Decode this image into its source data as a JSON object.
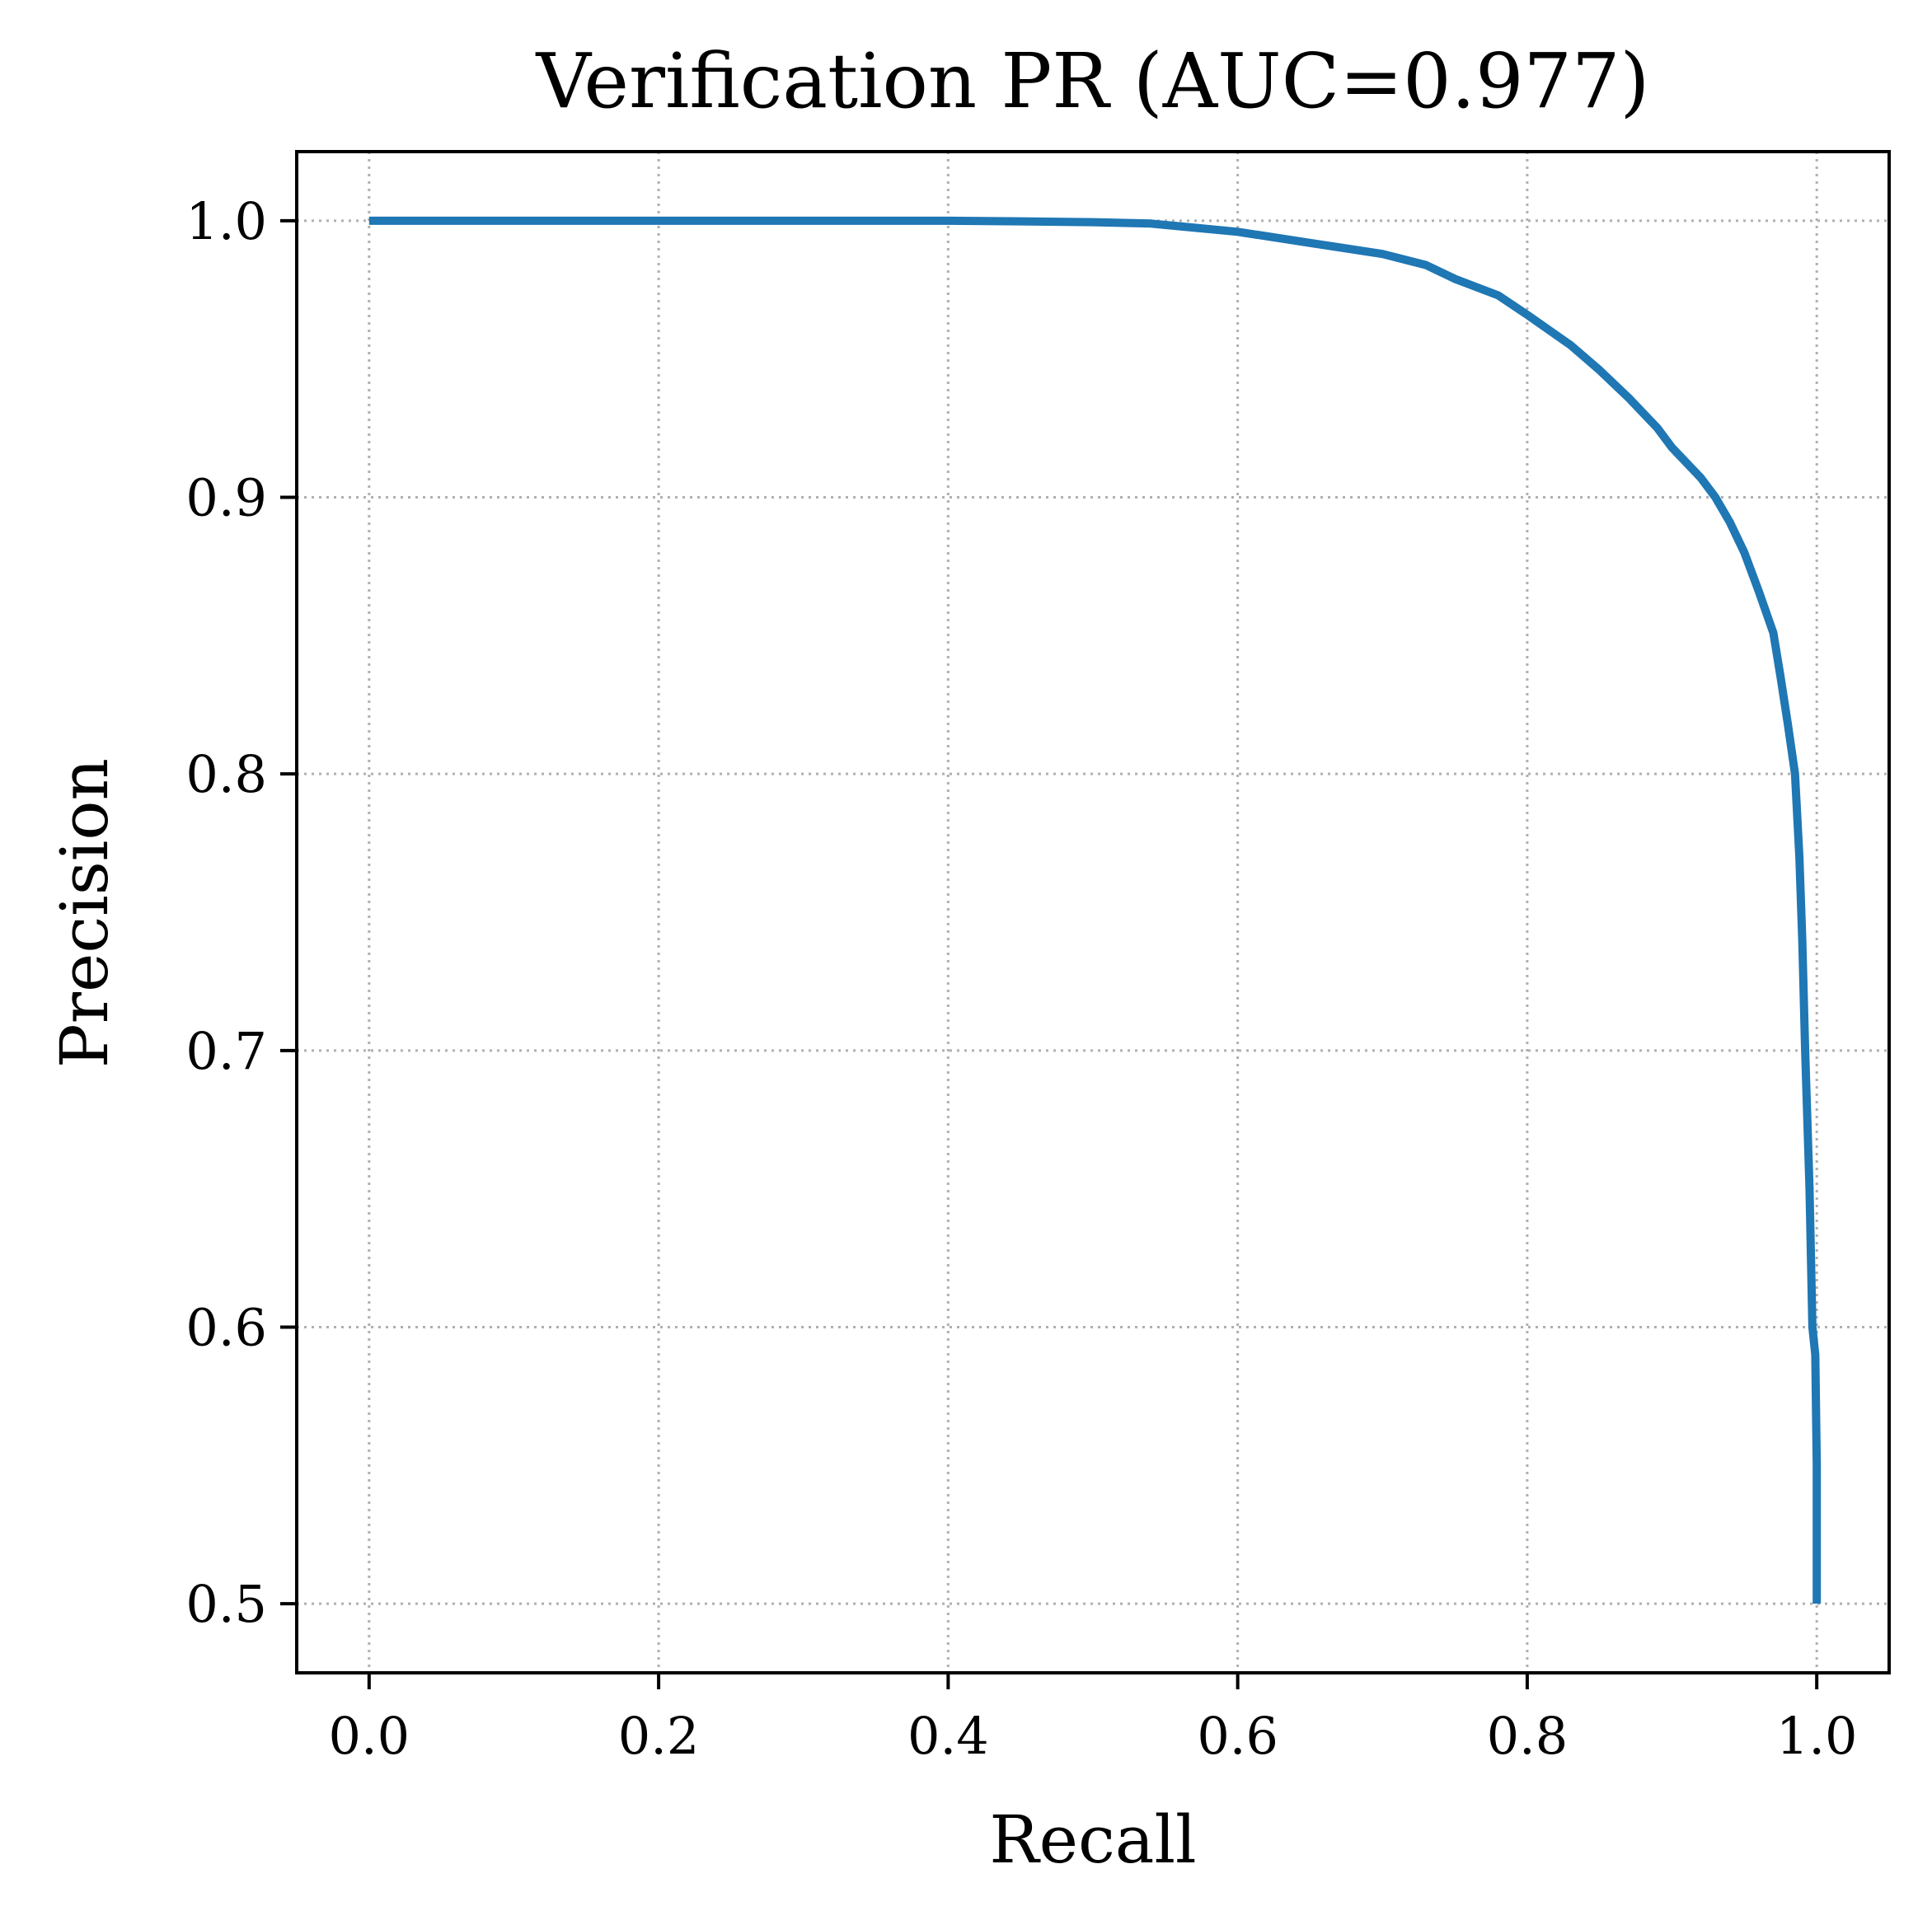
{
  "chart_data": {
    "type": "line",
    "title": "Verification PR (AUC=0.977)",
    "xlabel": "Recall",
    "ylabel": "Precision",
    "xlim": [
      -0.05,
      1.05
    ],
    "ylim": [
      0.475,
      1.025
    ],
    "xticks": [
      0.0,
      0.2,
      0.4,
      0.6,
      0.8,
      1.0
    ],
    "xtick_labels": [
      "0.0",
      "0.2",
      "0.4",
      "0.6",
      "0.8",
      "1.0"
    ],
    "yticks": [
      0.5,
      0.6,
      0.7,
      0.8,
      0.9,
      1.0
    ],
    "ytick_labels": [
      "0.5",
      "0.6",
      "0.7",
      "0.8",
      "0.9",
      "1.0"
    ],
    "grid": true,
    "series": [
      {
        "color": "#1f77b4",
        "x": [
          0.0,
          0.1,
          0.2,
          0.3,
          0.4,
          0.45,
          0.5,
          0.54,
          0.56,
          0.6,
          0.65,
          0.7,
          0.73,
          0.75,
          0.78,
          0.8,
          0.83,
          0.85,
          0.87,
          0.89,
          0.9,
          0.92,
          0.93,
          0.94,
          0.95,
          0.96,
          0.97,
          0.975,
          0.98,
          0.985,
          0.988,
          0.99,
          0.992,
          0.995,
          0.997,
          0.999,
          1.0,
          1.0
        ],
        "y": [
          1.0,
          1.0,
          1.0,
          1.0,
          1.0,
          0.9998,
          0.9995,
          0.999,
          0.998,
          0.996,
          0.992,
          0.988,
          0.984,
          0.979,
          0.973,
          0.966,
          0.955,
          0.946,
          0.936,
          0.925,
          0.918,
          0.907,
          0.9,
          0.891,
          0.88,
          0.866,
          0.851,
          0.835,
          0.818,
          0.8,
          0.77,
          0.74,
          0.7,
          0.65,
          0.6,
          0.59,
          0.55,
          0.5
        ]
      }
    ]
  }
}
